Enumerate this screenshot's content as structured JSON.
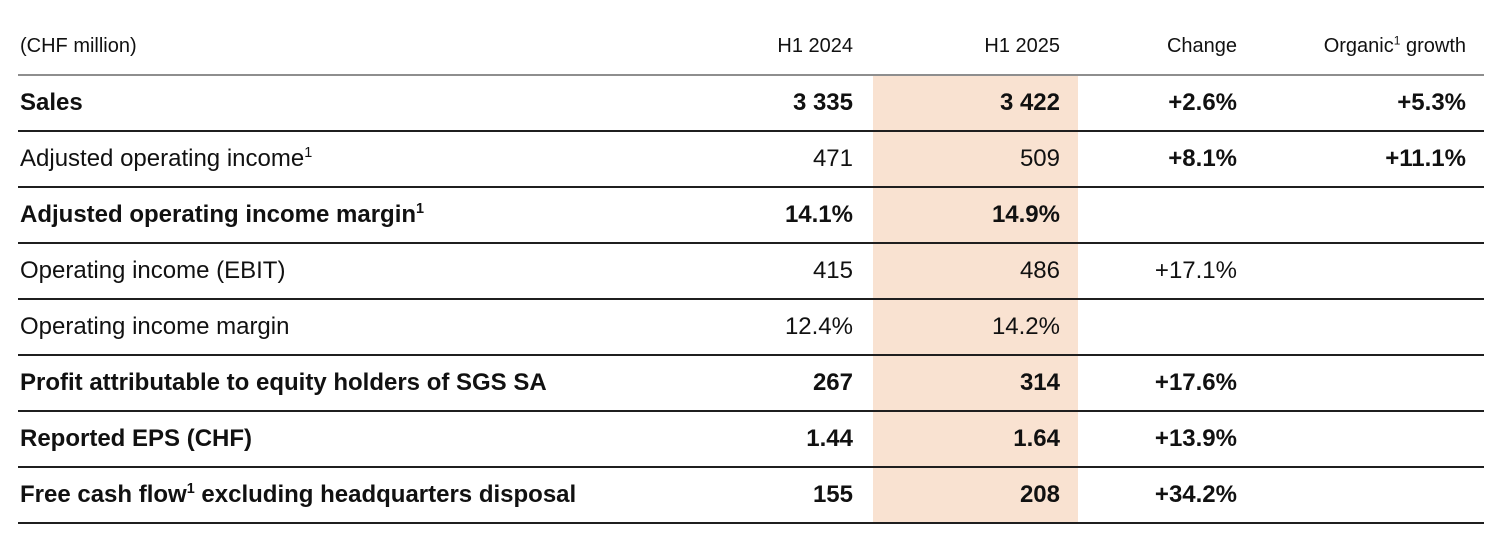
{
  "colors": {
    "highlight": "#f9e2d1",
    "header_line": "#8e8e8e",
    "row_line": "#1f1f1f",
    "text": "#111111",
    "background": "#ffffff"
  },
  "table": {
    "unit_label": "(CHF million)",
    "header": {
      "col_2024": "H1 2024",
      "col_2025": "H1 2025",
      "col_change": "Change",
      "col_organic_pre": "Organic",
      "col_organic_sup": "1",
      "col_organic_post": " growth"
    },
    "rows": [
      {
        "label_pre": "Sales",
        "v2024": "3 335",
        "v2025": "3 422",
        "change": "+2.6%",
        "organic": "+5.3%"
      },
      {
        "label_pre": "Adjusted operating income",
        "label_sup": "1",
        "v2024": "471",
        "v2025": "509",
        "change": "+8.1%",
        "organic": "+11.1%"
      },
      {
        "label_pre": "Adjusted operating income margin",
        "label_sup": "1",
        "v2024": "14.1%",
        "v2025": "14.9%"
      },
      {
        "label_pre": "Operating income (EBIT)",
        "v2024": "415",
        "v2025": "486",
        "change": "+17.1%"
      },
      {
        "label_pre": "Operating income margin",
        "v2024": "12.4%",
        "v2025": "14.2%"
      },
      {
        "label_pre": "Profit attributable to equity holders of SGS SA",
        "v2024": "267",
        "v2025": "314",
        "change": "+17.6%"
      },
      {
        "label_pre": "Reported EPS (CHF)",
        "v2024": "1.44",
        "v2025": "1.64",
        "change": "+13.9%"
      },
      {
        "label_pre": "Free cash flow",
        "label_sup": "1",
        "label_post": " excluding headquarters disposal",
        "v2024": "155",
        "v2025": "208",
        "change": "+34.2%"
      }
    ]
  }
}
